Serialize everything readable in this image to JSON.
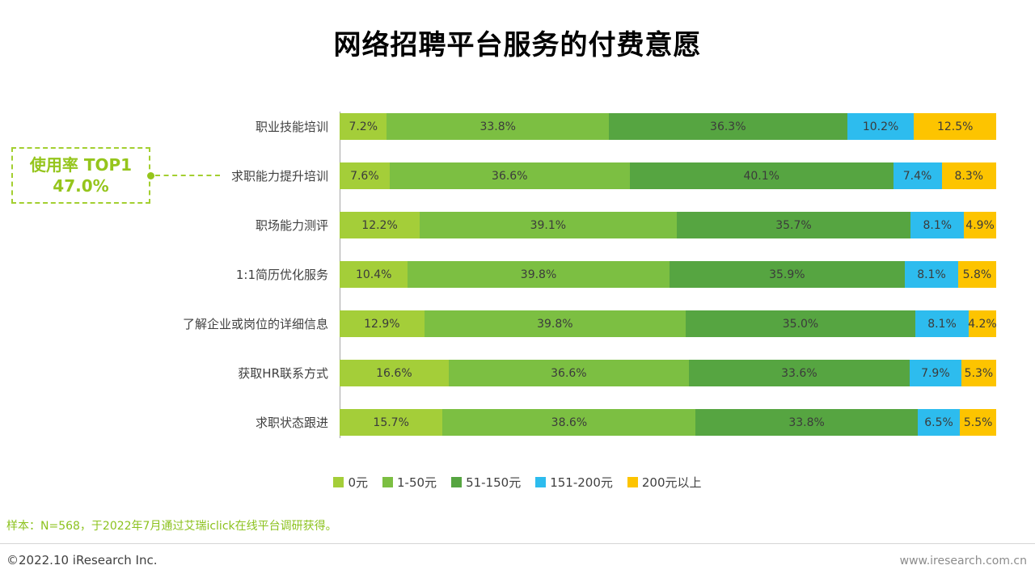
{
  "title": "网络招聘平台服务的付费意愿",
  "annotation": {
    "line1": "使用率 TOP1",
    "line2": "47.0%",
    "points_to": "求职能力提升培训"
  },
  "chart_data": {
    "type": "bar",
    "stacked": true,
    "orientation": "horizontal",
    "categories": [
      "职业技能培训",
      "求职能力提升培训",
      "职场能力测评",
      "1:1简历优化服务",
      "了解企业或岗位的详细信息",
      "获取HR联系方式",
      "求职状态跟进"
    ],
    "series": [
      {
        "name": "0元",
        "color": "#a4ce39",
        "values": [
          7.2,
          7.6,
          12.2,
          10.4,
          12.9,
          16.6,
          15.7
        ]
      },
      {
        "name": "1-50元",
        "color": "#7cbf42",
        "values": [
          33.8,
          36.6,
          39.1,
          39.8,
          39.8,
          36.6,
          38.6
        ]
      },
      {
        "name": "51-150元",
        "color": "#56a541",
        "values": [
          36.3,
          40.1,
          35.7,
          35.9,
          35.0,
          33.6,
          33.8
        ]
      },
      {
        "name": "151-200元",
        "color": "#2dbcee",
        "values": [
          10.2,
          7.4,
          8.1,
          8.1,
          8.1,
          7.9,
          6.5
        ]
      },
      {
        "name": "200元以上",
        "color": "#fdc400",
        "values": [
          12.5,
          8.3,
          4.9,
          5.8,
          4.2,
          5.3,
          5.5
        ]
      }
    ],
    "value_suffix": "%",
    "xlim": [
      0,
      100
    ],
    "legend_position": "bottom",
    "grid": false
  },
  "footnote": "样本：N=568，于2022年7月通过艾瑞iclick在线平台调研获得。",
  "footer": {
    "left": "©2022.10 iResearch Inc.",
    "right": "www.iresearch.com.cn"
  }
}
